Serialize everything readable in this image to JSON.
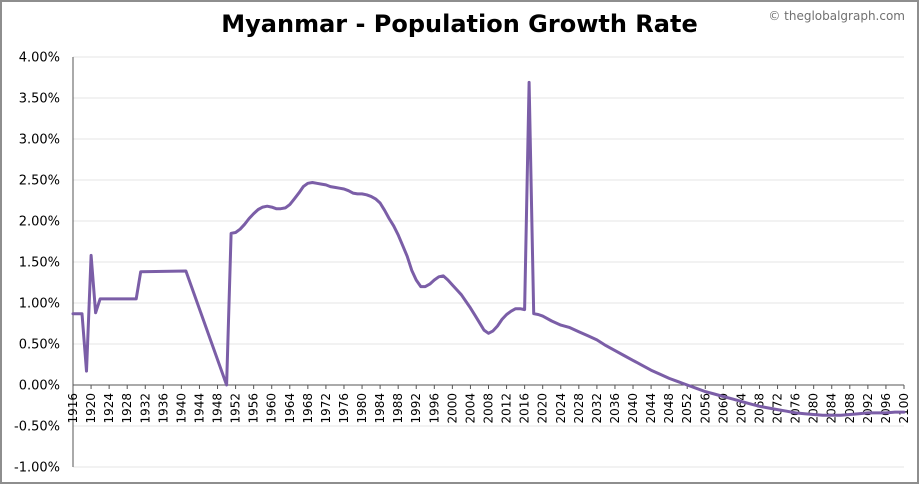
{
  "title": "Myanmar - Population Growth Rate",
  "watermark": "© theglobalgraph.com",
  "chart_data": {
    "type": "line",
    "title": "Myanmar - Population Growth Rate",
    "xlabel": "",
    "ylabel": "",
    "xlim": [
      1916,
      2100
    ],
    "ylim": [
      -1.0,
      4.0
    ],
    "y_ticks": [
      "4.00%",
      "3.50%",
      "3.00%",
      "2.50%",
      "2.00%",
      "1.50%",
      "1.00%",
      "0.50%",
      "0.00%",
      "-0.50%",
      "-1.00%"
    ],
    "y_tick_values": [
      4.0,
      3.5,
      3.0,
      2.5,
      2.0,
      1.5,
      1.0,
      0.5,
      0.0,
      -0.5,
      -1.0
    ],
    "x_ticks": [
      "1916",
      "1920",
      "1924",
      "1928",
      "1932",
      "1936",
      "1940",
      "1944",
      "1948",
      "1952",
      "1956",
      "1960",
      "1964",
      "1968",
      "1972",
      "1976",
      "1980",
      "1984",
      "1988",
      "1992",
      "1996",
      "2000",
      "2004",
      "2008",
      "2012",
      "2016",
      "2020",
      "2024",
      "2028",
      "2032",
      "2036",
      "2040",
      "2044",
      "2048",
      "2052",
      "2056",
      "2060",
      "2064",
      "2068",
      "2072",
      "2076",
      "2080",
      "2084",
      "2088",
      "2092",
      "2096",
      "2100"
    ],
    "line_color": "#7b5ea7",
    "grid": true,
    "series": [
      {
        "x": [
          1916,
          1918,
          1919,
          1920,
          1921,
          1922,
          1930,
          1931,
          1941,
          1950,
          1951,
          1952,
          1953,
          1954,
          1955,
          1956,
          1957,
          1958,
          1959,
          1960,
          1961,
          1962,
          1963,
          1964,
          1965,
          1966,
          1967,
          1968,
          1969,
          1970,
          1971,
          1972,
          1973,
          1974,
          1975,
          1976,
          1977,
          1978,
          1979,
          1980,
          1981,
          1982,
          1983,
          1984,
          1985,
          1986,
          1987,
          1988,
          1989,
          1990,
          1991,
          1992,
          1993,
          1994,
          1995,
          1996,
          1997,
          1998,
          1999,
          2000,
          2001,
          2002,
          2003,
          2004,
          2005,
          2006,
          2007,
          2008,
          2009,
          2010,
          2011,
          2012,
          2013,
          2014,
          2015,
          2016,
          2017,
          2018,
          2019,
          2020,
          2022,
          2024,
          2026,
          2028,
          2030,
          2032,
          2034,
          2036,
          2038,
          2040,
          2042,
          2044,
          2046,
          2048,
          2050,
          2052,
          2054,
          2056,
          2058,
          2060,
          2062,
          2064,
          2066,
          2068,
          2070,
          2072,
          2074,
          2076,
          2078,
          2080,
          2082,
          2084,
          2086,
          2088,
          2090,
          2092,
          2094,
          2096,
          2098,
          2100
        ],
        "y": [
          0.87,
          0.87,
          0.17,
          1.58,
          0.88,
          1.05,
          1.05,
          1.38,
          1.39,
          0.0,
          1.85,
          1.86,
          1.9,
          1.96,
          2.03,
          2.09,
          2.14,
          2.17,
          2.18,
          2.17,
          2.15,
          2.15,
          2.16,
          2.2,
          2.27,
          2.34,
          2.42,
          2.46,
          2.47,
          2.46,
          2.45,
          2.44,
          2.42,
          2.41,
          2.4,
          2.39,
          2.37,
          2.34,
          2.33,
          2.33,
          2.32,
          2.3,
          2.27,
          2.22,
          2.13,
          2.03,
          1.94,
          1.83,
          1.7,
          1.57,
          1.4,
          1.28,
          1.2,
          1.2,
          1.23,
          1.28,
          1.32,
          1.33,
          1.28,
          1.22,
          1.16,
          1.1,
          1.02,
          0.94,
          0.85,
          0.76,
          0.67,
          0.63,
          0.66,
          0.72,
          0.8,
          0.86,
          0.9,
          0.93,
          0.93,
          0.92,
          3.69,
          0.87,
          0.86,
          0.84,
          0.78,
          0.73,
          0.7,
          0.65,
          0.6,
          0.55,
          0.48,
          0.42,
          0.36,
          0.3,
          0.24,
          0.18,
          0.13,
          0.08,
          0.04,
          0.0,
          -0.04,
          -0.08,
          -0.11,
          -0.14,
          -0.17,
          -0.2,
          -0.23,
          -0.26,
          -0.28,
          -0.3,
          -0.32,
          -0.34,
          -0.35,
          -0.36,
          -0.37,
          -0.37,
          -0.37,
          -0.36,
          -0.35,
          -0.34,
          -0.34,
          -0.34,
          -0.33,
          -0.33
        ]
      }
    ]
  }
}
